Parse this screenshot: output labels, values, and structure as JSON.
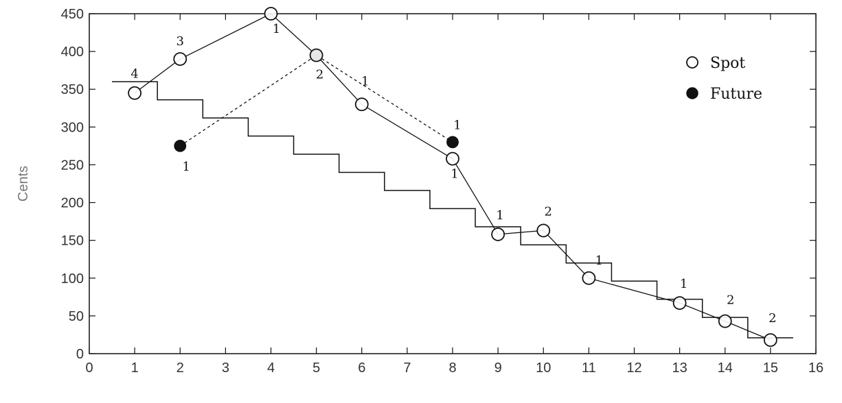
{
  "chart_data": {
    "type": "scatter",
    "title": "",
    "xlabel": "",
    "ylabel": "Cents",
    "xlim": [
      0,
      16
    ],
    "ylim": [
      0,
      450
    ],
    "x_tick_labels": [
      "0",
      "1",
      "2",
      "3",
      "4",
      "5",
      "6",
      "7",
      "8",
      "9",
      "10",
      "11",
      "12",
      "13",
      "14",
      "15",
      "16"
    ],
    "y_tick_labels": [
      "0",
      "50",
      "100",
      "150",
      "200",
      "250",
      "300",
      "350",
      "400",
      "450"
    ],
    "grid": false,
    "legend_position": "top-right",
    "series": [
      {
        "name": "Spot",
        "marker": "open-circle",
        "line": "solid",
        "color": "#111111",
        "points": [
          {
            "x": 1,
            "y": 345,
            "label": "4"
          },
          {
            "x": 2,
            "y": 390,
            "label": "3"
          },
          {
            "x": 4,
            "y": 450,
            "label": "1"
          },
          {
            "x": 5,
            "y": 395,
            "label": "2"
          },
          {
            "x": 6,
            "y": 330,
            "label": "1"
          },
          {
            "x": 8,
            "y": 258,
            "label": "1"
          },
          {
            "x": 9,
            "y": 158,
            "label": "1"
          },
          {
            "x": 10,
            "y": 163,
            "label": "2"
          },
          {
            "x": 11,
            "y": 100,
            "label": "1"
          },
          {
            "x": 13,
            "y": 67,
            "label": "1"
          },
          {
            "x": 14,
            "y": 43,
            "label": "2"
          },
          {
            "x": 15,
            "y": 18,
            "label": "2"
          }
        ]
      },
      {
        "name": "Future",
        "marker": "filled-circle",
        "line": "dashed",
        "color": "#111111",
        "points": [
          {
            "x": 2,
            "y": 275,
            "label": "1"
          },
          {
            "x": 5,
            "y": 395,
            "label": ""
          },
          {
            "x": 8,
            "y": 280,
            "label": "1"
          }
        ]
      }
    ],
    "step_line": {
      "start_x": 0.5,
      "step_width": 1,
      "values": [
        360,
        336,
        312,
        288,
        264,
        240,
        216,
        192,
        168,
        144,
        120,
        96,
        72,
        48,
        21
      ]
    }
  }
}
